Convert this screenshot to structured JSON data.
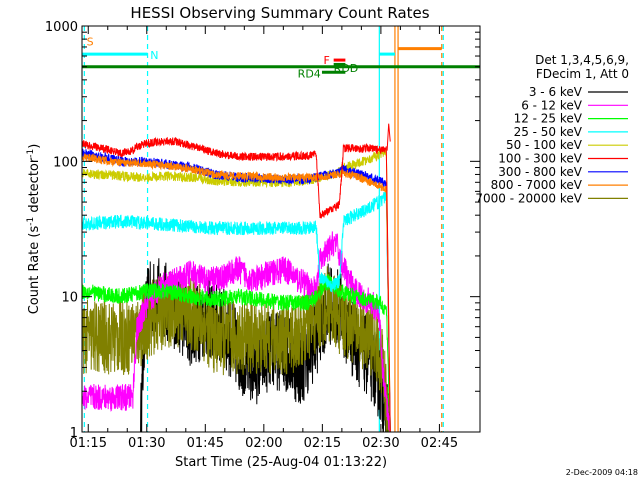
{
  "chart_data": {
    "type": "line",
    "title": "HESSI Observing Summary Count Rates",
    "xlabel": "Start Time (25-Aug-04 01:13:22)",
    "ylabel_main": "Count Rate (s",
    "ylabel_sup1": "-1",
    "ylabel_mid": " detector",
    "ylabel_sup2": "-1",
    "ylabel_end": ")",
    "x_axis": {
      "unit": "minutes since 01:13:22",
      "range": [
        0,
        102
      ],
      "ticks": [
        {
          "value": 1.6,
          "label": "01:15"
        },
        {
          "value": 16.6,
          "label": "01:30"
        },
        {
          "value": 31.6,
          "label": "01:45"
        },
        {
          "value": 46.6,
          "label": "02:00"
        },
        {
          "value": 61.6,
          "label": "02:15"
        },
        {
          "value": 76.6,
          "label": "02:30"
        },
        {
          "value": 91.6,
          "label": "02:45"
        }
      ]
    },
    "y_axis": {
      "scale": "log",
      "range": [
        1,
        1000
      ],
      "ticks": [
        {
          "value": 1,
          "label": "1"
        },
        {
          "value": 10,
          "label": "10"
        },
        {
          "value": 100,
          "label": "100"
        },
        {
          "value": 1000,
          "label": "1000"
        }
      ]
    },
    "legend": {
      "placement": "right",
      "header1": "Det 1,3,4,5,6,9,",
      "header2": "FDecim 1, Att 0"
    },
    "series": [
      {
        "name": "3 - 6 keV",
        "color": "#000000",
        "noise": 0.3,
        "points": [
          [
            0,
            1
          ],
          [
            15,
            1
          ],
          [
            16,
            6
          ],
          [
            17,
            9
          ],
          [
            20,
            10
          ],
          [
            24,
            8
          ],
          [
            28,
            6
          ],
          [
            32,
            7
          ],
          [
            36,
            6
          ],
          [
            40,
            4
          ],
          [
            44,
            3
          ],
          [
            48,
            4
          ],
          [
            52,
            4
          ],
          [
            56,
            3
          ],
          [
            60,
            5
          ],
          [
            63,
            9
          ],
          [
            66,
            8
          ],
          [
            69,
            5
          ],
          [
            72,
            4
          ],
          [
            75,
            3
          ],
          [
            77,
            2
          ],
          [
            79,
            1
          ],
          [
            102,
            1
          ]
        ]
      },
      {
        "name": "6 - 12 keV",
        "color": "#ff00ff",
        "noise": 0.1,
        "points": [
          [
            0,
            1.8
          ],
          [
            13,
            1.8
          ],
          [
            14,
            5.5
          ],
          [
            16,
            8
          ],
          [
            20,
            12
          ],
          [
            24,
            13
          ],
          [
            28,
            15
          ],
          [
            32,
            13
          ],
          [
            36,
            14
          ],
          [
            40,
            16
          ],
          [
            44,
            13
          ],
          [
            48,
            15
          ],
          [
            52,
            16
          ],
          [
            56,
            13
          ],
          [
            60,
            11
          ],
          [
            61,
            18
          ],
          [
            63,
            22
          ],
          [
            65,
            26
          ],
          [
            66,
            20
          ],
          [
            68,
            14
          ],
          [
            70,
            11
          ],
          [
            72,
            10
          ],
          [
            74,
            9
          ],
          [
            76,
            8
          ],
          [
            77,
            3
          ],
          [
            79,
            1
          ],
          [
            102,
            1
          ]
        ]
      },
      {
        "name": "12 - 25 keV",
        "color": "#00ff00",
        "noise": 0.06,
        "points": [
          [
            0,
            11
          ],
          [
            10,
            10
          ],
          [
            16,
            11
          ],
          [
            22,
            11
          ],
          [
            28,
            10
          ],
          [
            34,
            9.5
          ],
          [
            40,
            10
          ],
          [
            46,
            9.5
          ],
          [
            52,
            9
          ],
          [
            58,
            9
          ],
          [
            60,
            10
          ],
          [
            63,
            13
          ],
          [
            66,
            11
          ],
          [
            70,
            10
          ],
          [
            76,
            9
          ],
          [
            78,
            8
          ],
          [
            79,
            1
          ],
          [
            102,
            1
          ]
        ]
      },
      {
        "name": "25 - 50 keV",
        "color": "#00ffff",
        "noise": 0.05,
        "points": [
          [
            0,
            34
          ],
          [
            5,
            35
          ],
          [
            10,
            36
          ],
          [
            16,
            35
          ],
          [
            22,
            34
          ],
          [
            28,
            33
          ],
          [
            34,
            32
          ],
          [
            40,
            32
          ],
          [
            46,
            32
          ],
          [
            52,
            32
          ],
          [
            58,
            32
          ],
          [
            60,
            33
          ],
          [
            61,
            14
          ],
          [
            64,
            12
          ],
          [
            66,
            13
          ],
          [
            67,
            36
          ],
          [
            70,
            40
          ],
          [
            74,
            46
          ],
          [
            77,
            52
          ],
          [
            78,
            55
          ],
          [
            79,
            1
          ],
          [
            102,
            1
          ]
        ]
      },
      {
        "name": "50 - 100 keV",
        "color": "#cccc00",
        "noise": 0.035,
        "points": [
          [
            0,
            82
          ],
          [
            5,
            80
          ],
          [
            10,
            78
          ],
          [
            16,
            76
          ],
          [
            22,
            78
          ],
          [
            28,
            76
          ],
          [
            34,
            72
          ],
          [
            40,
            70
          ],
          [
            46,
            70
          ],
          [
            52,
            70
          ],
          [
            58,
            72
          ],
          [
            60,
            74
          ],
          [
            61,
            76
          ],
          [
            65,
            80
          ],
          [
            67,
            90
          ],
          [
            70,
            95
          ],
          [
            74,
            105
          ],
          [
            77,
            115
          ],
          [
            78,
            120
          ],
          [
            79,
            1
          ],
          [
            102,
            1
          ]
        ]
      },
      {
        "name": "100 - 300 keV",
        "color": "#ff0000",
        "noise": 0.03,
        "points": [
          [
            0,
            135
          ],
          [
            5,
            125
          ],
          [
            10,
            115
          ],
          [
            13,
            120
          ],
          [
            14,
            128
          ],
          [
            16,
            135
          ],
          [
            20,
            140
          ],
          [
            24,
            140
          ],
          [
            28,
            130
          ],
          [
            34,
            115
          ],
          [
            40,
            108
          ],
          [
            46,
            108
          ],
          [
            52,
            108
          ],
          [
            58,
            110
          ],
          [
            60,
            115
          ],
          [
            61,
            40
          ],
          [
            64,
            44
          ],
          [
            66,
            48
          ],
          [
            67,
            125
          ],
          [
            70,
            125
          ],
          [
            74,
            125
          ],
          [
            77,
            120
          ],
          [
            78,
            125
          ],
          [
            79,
            1
          ],
          [
            102,
            1
          ]
        ]
      },
      {
        "name": "300 - 800 keV",
        "color": "#0000ff",
        "noise": 0.035,
        "points": [
          [
            0,
            115
          ],
          [
            5,
            108
          ],
          [
            10,
            100
          ],
          [
            16,
            100
          ],
          [
            22,
            95
          ],
          [
            28,
            90
          ],
          [
            34,
            80
          ],
          [
            40,
            76
          ],
          [
            46,
            75
          ],
          [
            52,
            73
          ],
          [
            58,
            74
          ],
          [
            60,
            76
          ],
          [
            63,
            80
          ],
          [
            66,
            82
          ],
          [
            67,
            88
          ],
          [
            70,
            82
          ],
          [
            74,
            76
          ],
          [
            77,
            70
          ],
          [
            78,
            68
          ],
          [
            79,
            1
          ],
          [
            102,
            1
          ]
        ]
      },
      {
        "name": "800 - 7000 keV",
        "color": "#ff7f00",
        "noise": 0.03,
        "points": [
          [
            0,
            108
          ],
          [
            5,
            102
          ],
          [
            10,
            98
          ],
          [
            16,
            97
          ],
          [
            22,
            92
          ],
          [
            28,
            88
          ],
          [
            34,
            80
          ],
          [
            40,
            78
          ],
          [
            46,
            77
          ],
          [
            52,
            76
          ],
          [
            58,
            76
          ],
          [
            60,
            77
          ],
          [
            63,
            78
          ],
          [
            66,
            80
          ],
          [
            67,
            82
          ],
          [
            70,
            78
          ],
          [
            74,
            70
          ],
          [
            77,
            64
          ],
          [
            78,
            62
          ],
          [
            79,
            1
          ],
          [
            102,
            1
          ]
        ]
      },
      {
        "name": "7000 - 20000 keV",
        "color": "#808000",
        "noise": 0.28,
        "points": [
          [
            0,
            5
          ],
          [
            12,
            5
          ],
          [
            16,
            6
          ],
          [
            18,
            7
          ],
          [
            22,
            8
          ],
          [
            26,
            8
          ],
          [
            30,
            7
          ],
          [
            34,
            5
          ],
          [
            38,
            5
          ],
          [
            42,
            5
          ],
          [
            46,
            5
          ],
          [
            50,
            5
          ],
          [
            54,
            5
          ],
          [
            58,
            6
          ],
          [
            60,
            7
          ],
          [
            63,
            9
          ],
          [
            66,
            7
          ],
          [
            70,
            6
          ],
          [
            74,
            5
          ],
          [
            76,
            4
          ],
          [
            77,
            3
          ],
          [
            79,
            1
          ],
          [
            102,
            1
          ]
        ]
      }
    ],
    "annotations": [
      {
        "label": "S",
        "color": "#ff7f00"
      },
      {
        "label": "N",
        "color": "#00ffff"
      },
      {
        "label": "F",
        "color": "#ff0000"
      },
      {
        "label": "RDD",
        "color": "#008000"
      },
      {
        "label": "RD4",
        "color": "#008000"
      }
    ],
    "bars": {
      "saa_y": 620,
      "flag_y": 560,
      "rdd_y": 520,
      "rd4_y": 455,
      "dark_green_y": 500
    }
  },
  "timestamp": "2-Dec-2009 04:18",
  "colors": {
    "cyan": "#00ffff",
    "orange": "#ff7f00",
    "dark_green": "#008000",
    "red": "#ff0000"
  }
}
